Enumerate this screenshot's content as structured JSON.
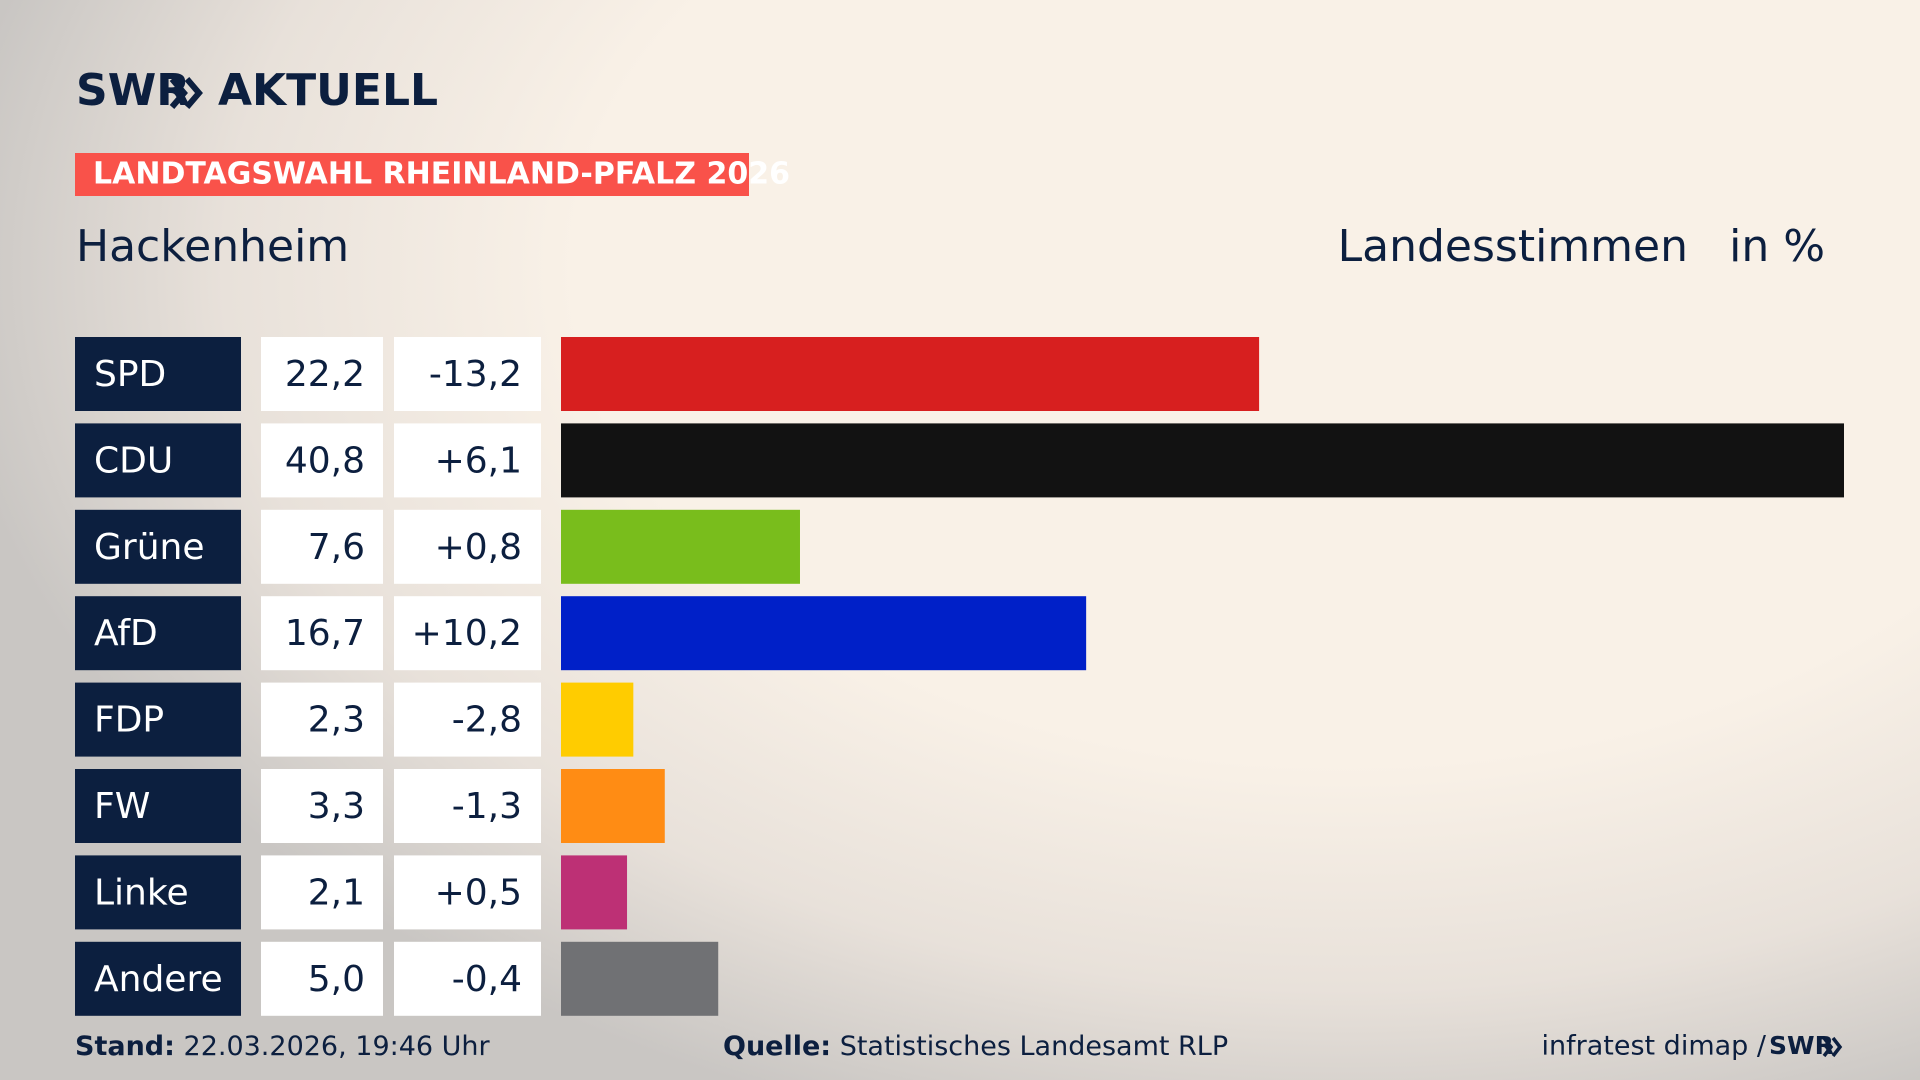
{
  "chart_data": {
    "type": "bar",
    "brand": "SWR",
    "brand_suffix": "AKTUELL",
    "badge": "LANDTAGSWAHL RHEINLAND-PFALZ 2026",
    "title": "Hackenheim",
    "measure": "Landesstimmen",
    "unit": "in %",
    "categories": [
      "SPD",
      "CDU",
      "Grüne",
      "AfD",
      "FDP",
      "FW",
      "Linke",
      "Andere"
    ],
    "values": [
      22.2,
      40.8,
      7.6,
      16.7,
      2.3,
      3.3,
      2.1,
      5.0
    ],
    "value_labels": [
      "22,2",
      "40,8",
      "7,6",
      "16,7",
      "2,3",
      "3,3",
      "2,1",
      "5,0"
    ],
    "changes": [
      -13.2,
      6.1,
      0.8,
      10.2,
      -2.8,
      -1.3,
      0.5,
      -0.4
    ],
    "change_labels": [
      "-13,2",
      "+6,1",
      "+0,8",
      "+10,2",
      "-2,8",
      "-1,3",
      "+0,5",
      "-0,4"
    ],
    "colors": [
      "#d71f1f",
      "#121212",
      "#79bd1c",
      "#0020c8",
      "#ffcc00",
      "#ff8c14",
      "#bd3075",
      "#707174"
    ],
    "footer": {
      "stand_label": "Stand:",
      "stand": "22.03.2026, 19:46 Uhr",
      "source_label": "Quelle:",
      "source": "Statistisches Landesamt RLP",
      "credit": "infratest dimap /",
      "credit_brand": "SWR"
    }
  }
}
